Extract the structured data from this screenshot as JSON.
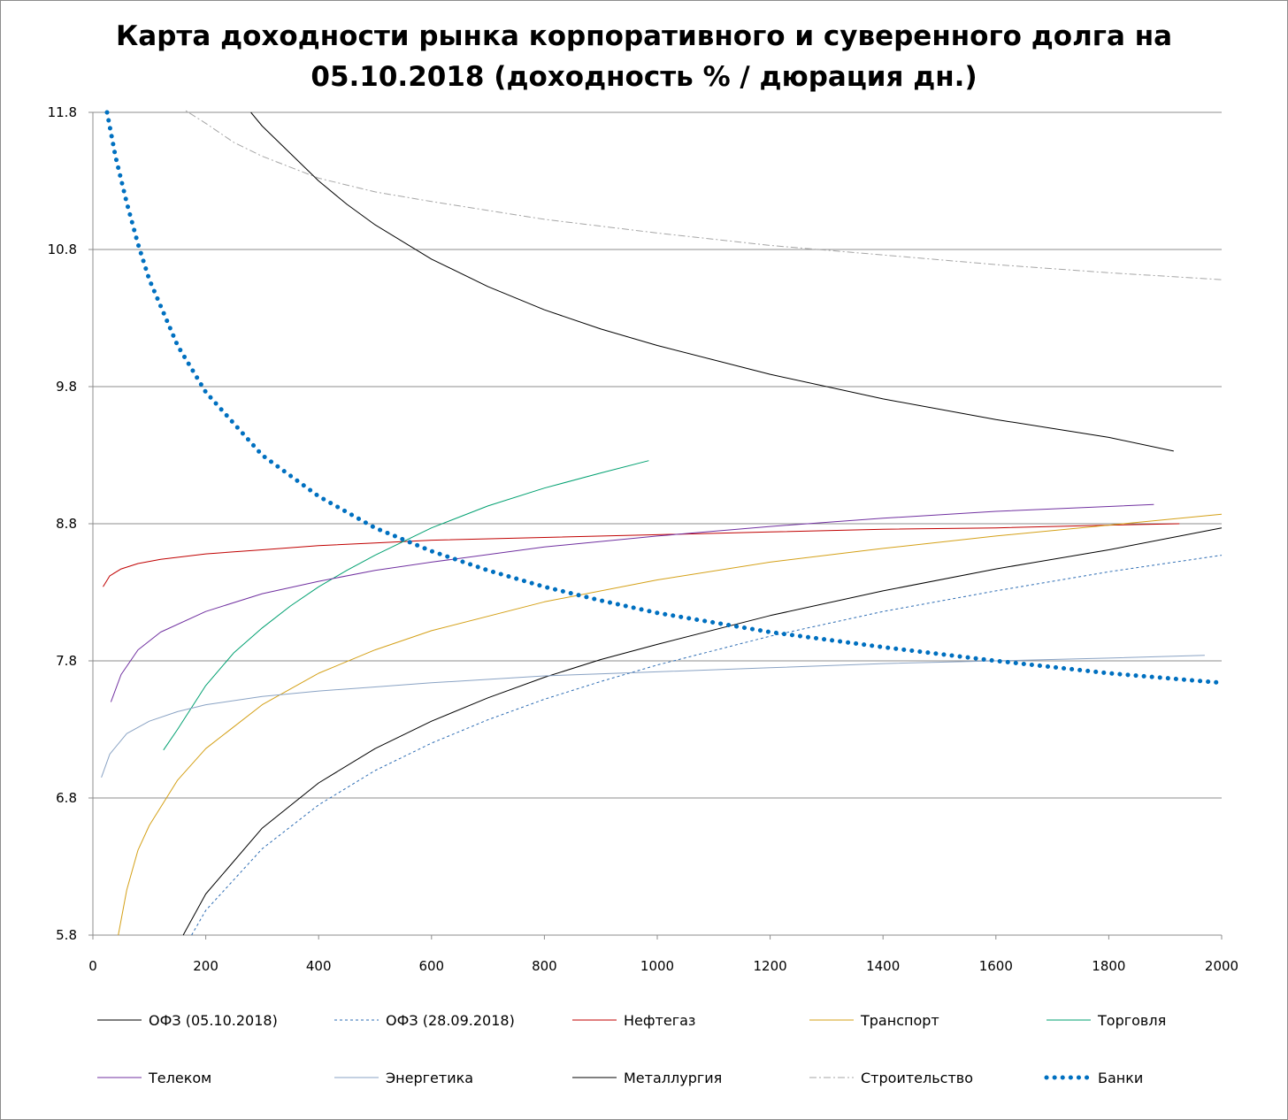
{
  "chart_data": {
    "type": "line",
    "title": [
      "Карта доходности рынка корпоративного и суверенного долга на",
      "05.10.2018 (доходность % / дюрация дн.)"
    ],
    "xlabel": "",
    "ylabel": "",
    "xlim": [
      0,
      2000
    ],
    "ylim": [
      5.8,
      11.8
    ],
    "xticks": [
      0,
      200,
      400,
      600,
      800,
      1000,
      1200,
      1400,
      1600,
      1800,
      2000
    ],
    "yticks": [
      5.8,
      6.8,
      7.8,
      8.8,
      9.8,
      10.8,
      11.8
    ],
    "grid": "horizontal",
    "legend_position": "bottom",
    "series": [
      {
        "name": "ОФЗ (05.10.2018)",
        "color": "#000000",
        "dash": "solid",
        "width": 1,
        "x": [
          160,
          200,
          300,
          400,
          500,
          600,
          700,
          800,
          900,
          1000,
          1200,
          1400,
          1600,
          1800,
          2000
        ],
        "y": [
          5.8,
          6.1,
          6.58,
          6.91,
          7.16,
          7.36,
          7.53,
          7.68,
          7.81,
          7.92,
          8.13,
          8.31,
          8.47,
          8.61,
          8.77
        ]
      },
      {
        "name": "ОФЗ (28.09.2018)",
        "color": "#2e6db4",
        "dash": "3,3",
        "width": 1,
        "x": [
          175,
          200,
          300,
          400,
          500,
          600,
          700,
          800,
          900,
          1000,
          1200,
          1400,
          1600,
          1800,
          2000
        ],
        "y": [
          5.8,
          5.98,
          6.43,
          6.75,
          7.0,
          7.2,
          7.37,
          7.52,
          7.65,
          7.77,
          7.98,
          8.16,
          8.31,
          8.45,
          8.57
        ]
      },
      {
        "name": "Нефтегаз",
        "color": "#c00000",
        "dash": "solid",
        "width": 1,
        "x": [
          18,
          30,
          50,
          80,
          120,
          200,
          300,
          400,
          500,
          600,
          800,
          1000,
          1200,
          1400,
          1600,
          1800,
          1925
        ],
        "y": [
          8.34,
          8.42,
          8.47,
          8.51,
          8.54,
          8.58,
          8.61,
          8.64,
          8.66,
          8.68,
          8.7,
          8.72,
          8.74,
          8.76,
          8.77,
          8.79,
          8.8
        ]
      },
      {
        "name": "Транспорт",
        "color": "#d4a017",
        "dash": "solid",
        "width": 1,
        "x": [
          45,
          60,
          80,
          100,
          150,
          200,
          300,
          400,
          500,
          600,
          800,
          1000,
          1200,
          1400,
          1600,
          1800,
          2000
        ],
        "y": [
          5.8,
          6.13,
          6.42,
          6.6,
          6.93,
          7.16,
          7.48,
          7.71,
          7.88,
          8.02,
          8.23,
          8.39,
          8.52,
          8.62,
          8.71,
          8.79,
          8.87
        ]
      },
      {
        "name": "Торговля",
        "color": "#00a070",
        "dash": "solid",
        "width": 1,
        "x": [
          125,
          150,
          200,
          250,
          300,
          350,
          400,
          450,
          500,
          600,
          700,
          800,
          900,
          985
        ],
        "y": [
          7.15,
          7.3,
          7.62,
          7.86,
          8.04,
          8.2,
          8.34,
          8.46,
          8.57,
          8.77,
          8.93,
          9.06,
          9.17,
          9.26
        ]
      },
      {
        "name": "Телеком",
        "color": "#7030a0",
        "dash": "solid",
        "width": 1,
        "x": [
          32,
          50,
          80,
          120,
          200,
          300,
          400,
          500,
          600,
          800,
          1000,
          1200,
          1400,
          1600,
          1880
        ],
        "y": [
          7.5,
          7.7,
          7.88,
          8.01,
          8.16,
          8.29,
          8.38,
          8.46,
          8.52,
          8.63,
          8.71,
          8.78,
          8.84,
          8.89,
          8.94
        ]
      },
      {
        "name": "Энергетика",
        "color": "#8aa3c4",
        "dash": "solid",
        "width": 1,
        "x": [
          15,
          30,
          60,
          100,
          150,
          200,
          300,
          400,
          500,
          600,
          800,
          1000,
          1200,
          1400,
          1600,
          1800,
          1970
        ],
        "y": [
          6.95,
          7.12,
          7.27,
          7.36,
          7.43,
          7.48,
          7.54,
          7.58,
          7.61,
          7.64,
          7.69,
          7.72,
          7.75,
          7.78,
          7.8,
          7.82,
          7.84
        ]
      },
      {
        "name": "Металлургия",
        "color": "#000000",
        "dash": "solid",
        "width": 1,
        "x": [
          280,
          300,
          350,
          400,
          450,
          500,
          600,
          700,
          800,
          900,
          1000,
          1200,
          1400,
          1600,
          1800,
          1915
        ],
        "y": [
          11.8,
          11.7,
          11.5,
          11.3,
          11.13,
          10.98,
          10.73,
          10.53,
          10.36,
          10.22,
          10.1,
          9.89,
          9.71,
          9.56,
          9.43,
          9.33
        ]
      },
      {
        "name": "Строительство",
        "color": "#a6a6a6",
        "dash": "8,3,2,3",
        "width": 1,
        "x": [
          150,
          200,
          250,
          300,
          400,
          500,
          600,
          800,
          1000,
          1200,
          1400,
          1600,
          1800,
          2000
        ],
        "y": [
          11.85,
          11.72,
          11.58,
          11.48,
          11.32,
          11.22,
          11.15,
          11.02,
          10.92,
          10.83,
          10.76,
          10.69,
          10.63,
          10.58
        ]
      },
      {
        "name": "Банки",
        "color": "#0070c0",
        "dash": "0.1,9",
        "width": 5,
        "x": [
          25,
          40,
          60,
          80,
          100,
          150,
          200,
          300,
          400,
          500,
          600,
          700,
          800,
          900,
          1000,
          1200,
          1400,
          1600,
          1800,
          2000
        ],
        "y": [
          11.8,
          11.48,
          11.14,
          10.84,
          10.58,
          10.1,
          9.76,
          9.3,
          9.0,
          8.77,
          8.6,
          8.46,
          8.34,
          8.24,
          8.15,
          8.01,
          7.9,
          7.8,
          7.71,
          7.64
        ]
      }
    ]
  }
}
